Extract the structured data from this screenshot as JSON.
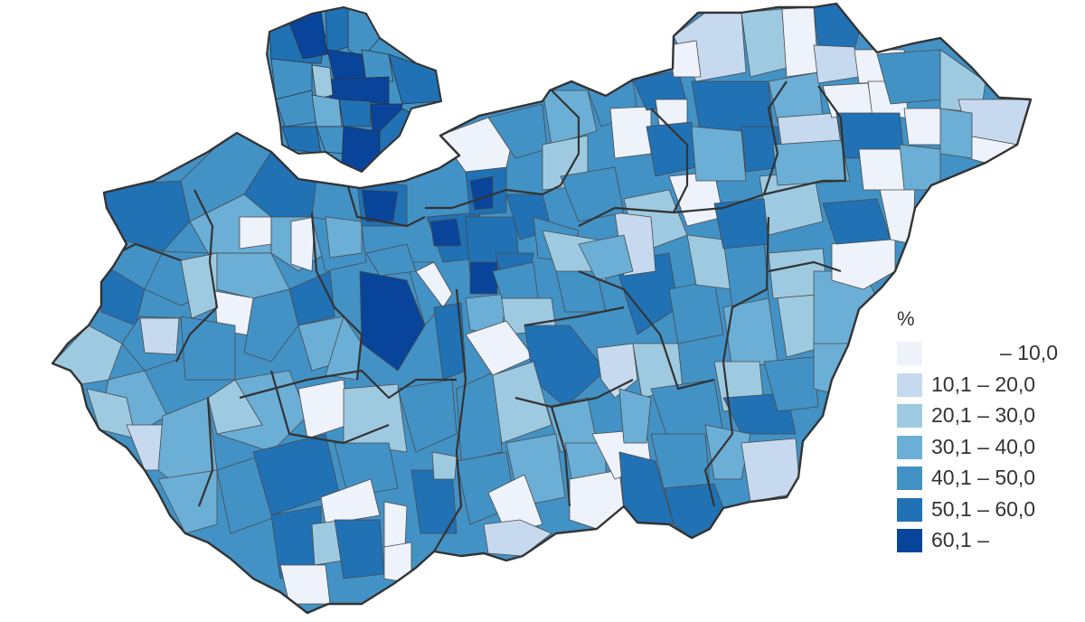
{
  "map": {
    "colors": {
      "c1": "#eef2fb",
      "c2": "#c6d9ee",
      "c3": "#9ecae1",
      "c4": "#6baed6",
      "c5": "#4292c6",
      "c6": "#2171b5",
      "c7": "#08459a",
      "border_county": "#333333",
      "border_district": "#4a4a4a"
    }
  },
  "legend": {
    "unit": "%",
    "items": [
      {
        "label": "– 10,0",
        "color": "#eef2fb"
      },
      {
        "label": "10,1 – 20,0",
        "color": "#c6d9ee"
      },
      {
        "label": "20,1 – 30,0",
        "color": "#9ecae1"
      },
      {
        "label": "30,1 – 40,0",
        "color": "#6baed6"
      },
      {
        "label": "40,1 – 50,0",
        "color": "#4292c6"
      },
      {
        "label": "50,1 – 60,0",
        "color": "#2171b5"
      },
      {
        "label": "60,1 –",
        "color": "#08459a"
      }
    ]
  }
}
